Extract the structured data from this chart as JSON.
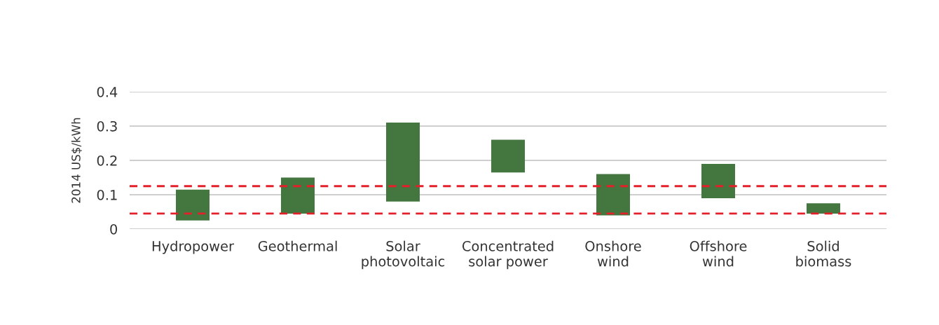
{
  "chart_data": {
    "type": "bar",
    "ylabel": "2014 US$/kWh",
    "categories": [
      "Hydropower",
      "Geothermal",
      "Solar\nphotovoltaic",
      "Concentrated\nsolar power",
      "Onshore\nwind",
      "Offshore\nwind",
      "Solid\nbiomass"
    ],
    "base": [
      0.025,
      0.045,
      0.08,
      0.165,
      0.04,
      0.09,
      0.045
    ],
    "values": [
      0.09,
      0.105,
      0.23,
      0.095,
      0.12,
      0.1,
      0.03
    ],
    "color": "#44773f",
    "ylim": [
      0,
      0.4
    ],
    "yticks": [
      {
        "value": 0,
        "label": "0"
      },
      0.1,
      0.2,
      0.3,
      0.4
    ],
    "grid": "y",
    "ref_lines": [
      {
        "axis": "y",
        "value": 0.125,
        "color": "#e3202a",
        "line_style": "dashed"
      },
      {
        "axis": "y",
        "value": 0.045,
        "color": "#e3202a",
        "line_style": "dashed"
      }
    ]
  }
}
